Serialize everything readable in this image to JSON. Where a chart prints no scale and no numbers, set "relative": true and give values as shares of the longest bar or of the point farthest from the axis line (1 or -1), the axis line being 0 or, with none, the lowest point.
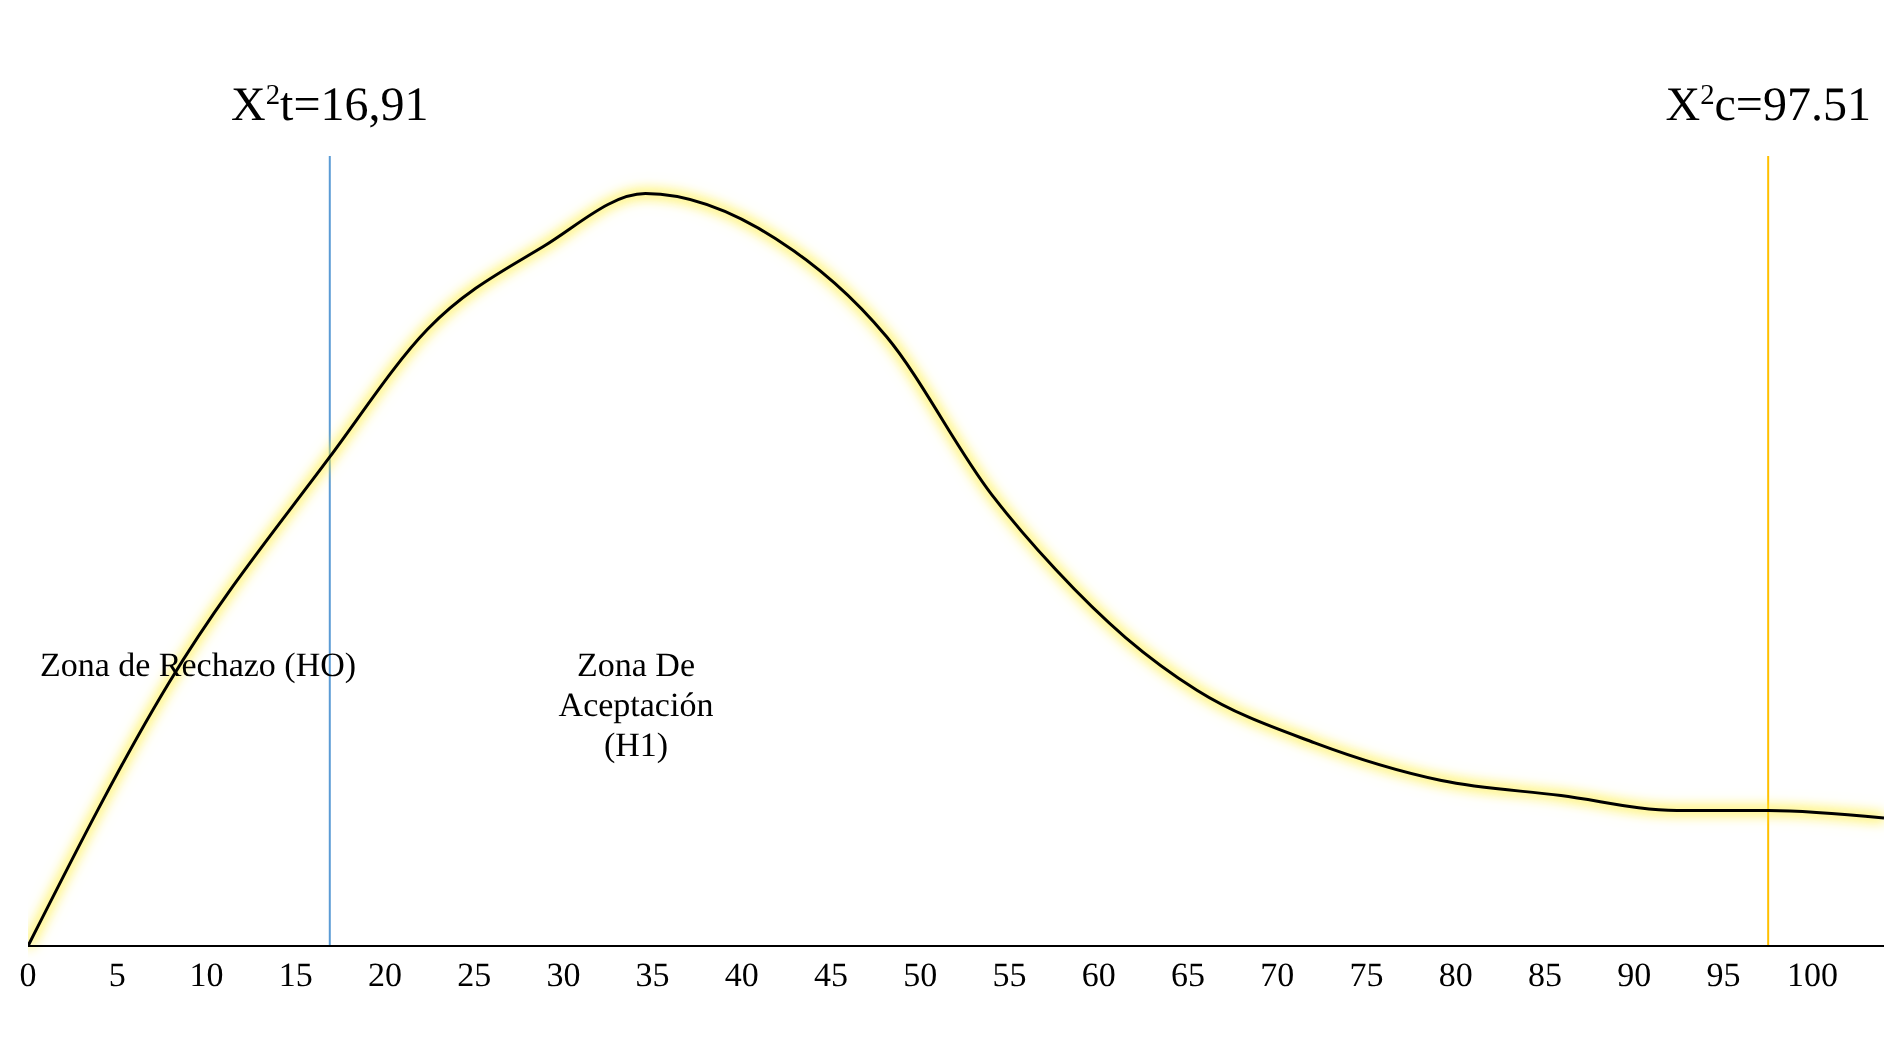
{
  "chart_data": {
    "type": "line",
    "relative": true,
    "x": [
      0,
      7.9,
      16.91,
      22.4,
      28.9,
      34.6,
      41.9,
      48.1,
      54,
      57.6,
      61.5,
      65.5,
      72.1,
      79.2,
      85.9,
      92.4,
      97.51,
      104
    ],
    "series": [
      {
        "color": "#000000",
        "values": [
          0,
          0.35,
          0.65,
          0.82,
          0.93,
          1,
          0.94,
          0.81,
          0.6,
          0.5,
          0.41,
          0.34,
          0.27,
          0.22,
          0.2,
          0.18,
          0.18,
          0.17
        ]
      }
    ],
    "xlim": [
      0,
      104
    ],
    "xticks": [
      0,
      5,
      10,
      15,
      20,
      25,
      30,
      35,
      40,
      45,
      50,
      55,
      60,
      65,
      70,
      75,
      80,
      85,
      90,
      95,
      100
    ],
    "marker": "none",
    "line_style": "solid",
    "ref_lines": [
      {
        "axis": "x",
        "value": 16.91,
        "label": "X$^{2}$t=16,91",
        "color": "#5b9bd5"
      },
      {
        "axis": "x",
        "value": 97.51,
        "label": "X$^{2}$c=97.51",
        "color": "#ffc000"
      }
    ],
    "annotations": [
      "Zona de Rechazo (HO)",
      "Zona De Aceptación (H1)"
    ]
  }
}
